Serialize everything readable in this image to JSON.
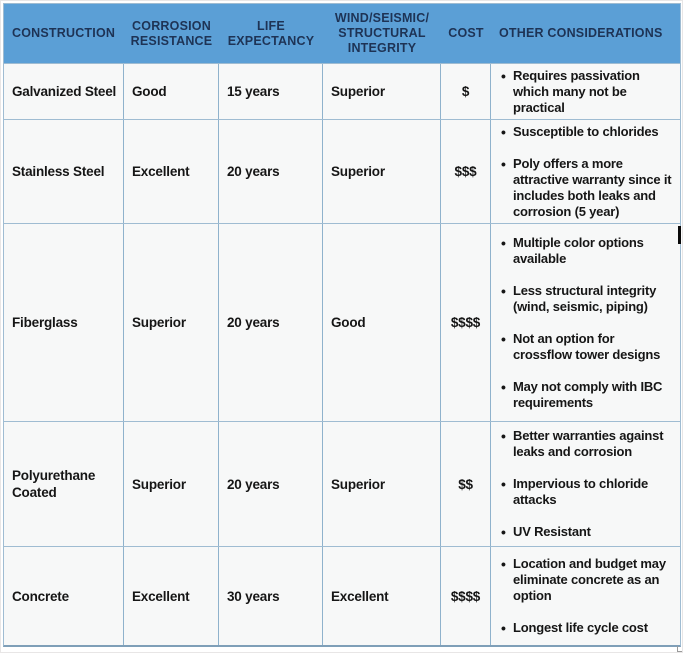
{
  "table": {
    "columns": [
      {
        "label": "CONSTRUCTION"
      },
      {
        "label": "CORROSION\nRESISTANCE"
      },
      {
        "label": "LIFE\nEXPECTANCY"
      },
      {
        "label": "WIND/SEISMIC/\nSTRUCTURAL\nINTEGRITY"
      },
      {
        "label": "COST"
      },
      {
        "label": "OTHER CONSIDERATIONS"
      }
    ],
    "rows": [
      {
        "construction": "Galvanized Steel",
        "corrosion_resistance": "Good",
        "life_expectancy": "15 years",
        "wind_seismic_structural_integrity": "Superior",
        "cost": "$",
        "other_considerations": [
          "Requires passivation which many not be practical"
        ]
      },
      {
        "construction": "Stainless Steel",
        "corrosion_resistance": "Excellent",
        "life_expectancy": "20 years",
        "wind_seismic_structural_integrity": "Superior",
        "cost": "$$$",
        "other_considerations": [
          "Susceptible to chlorides",
          "Poly offers a more attractive warranty since it includes both leaks and corrosion (5 year)"
        ]
      },
      {
        "construction": "Fiberglass",
        "corrosion_resistance": "Superior",
        "life_expectancy": "20 years",
        "wind_seismic_structural_integrity": "Good",
        "cost": "$$$$",
        "other_considerations": [
          "Multiple color options available",
          "Less structural integrity (wind, seismic, piping)",
          "Not an option for crossflow tower designs",
          "May not comply with IBC requirements"
        ]
      },
      {
        "construction": "Polyurethane Coated",
        "corrosion_resistance": "Superior",
        "life_expectancy": "20 years",
        "wind_seismic_structural_integrity": "Superior",
        "cost": "$$",
        "other_considerations": [
          "Better warranties against leaks and corrosion",
          "Impervious to chloride attacks",
          "UV Resistant"
        ]
      },
      {
        "construction": "Concrete",
        "corrosion_resistance": "Excellent",
        "life_expectancy": "30 years",
        "wind_seismic_structural_integrity": "Excellent",
        "cost": "$$$$",
        "other_considerations": [
          "Location and budget may eliminate concrete as an option",
          "Longest life cycle cost"
        ]
      }
    ]
  },
  "colors": {
    "header_background": "#5B9FD6",
    "header_text": "#1E3355",
    "cell_background": "#F7F8F8",
    "grid_border": "#8FB2CC",
    "outer_bottom_border": "#7F9FB8",
    "body_text": "#161616"
  }
}
